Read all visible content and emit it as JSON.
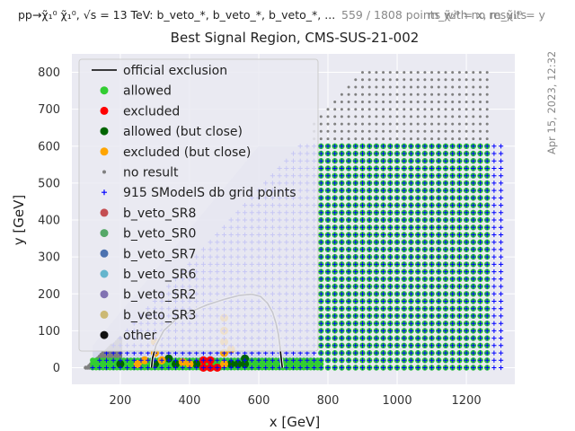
{
  "header": {
    "left": "pp→χ̃₁⁰ χ̃₁⁰, √s = 13 TeV: b_veto_*, b_veto_*, b_veto_*, ...",
    "mid": "559 / 1808 points with no results",
    "right": "m_χ̃₂⁰ = x, m_χ̃₁⁰ = y"
  },
  "timestamp": "Apr 15, 2023, 12:32",
  "colors": {
    "background": "#eaeaf2",
    "allowed": "#32cd32",
    "excluded": "#ff0000",
    "allowed_close": "#006400",
    "excluded_close": "#ffa500",
    "no_result": "#808080",
    "grid_points": "#0000ff",
    "exclusion_line": "#000000",
    "shading": "#cfd3ea"
  },
  "chart_data": {
    "type": "scatter",
    "title": "Best Signal Region, CMS-SUS-21-002",
    "xlabel": "x [GeV]",
    "ylabel": "y [GeV]",
    "xlim": [
      60,
      1340
    ],
    "ylim": [
      -45,
      850
    ],
    "xticks": [
      "200",
      "400",
      "600",
      "800",
      "1000",
      "1200"
    ],
    "yticks": [
      "0",
      "100",
      "200",
      "300",
      "400",
      "500",
      "600",
      "700",
      "800"
    ],
    "grid": true,
    "legend_position": "upper left",
    "legend": [
      {
        "label": "official exclusion",
        "marker": "line",
        "color": "#000000"
      },
      {
        "label": "allowed",
        "marker": "dot",
        "color": "#32cd32"
      },
      {
        "label": "excluded",
        "marker": "dot",
        "color": "#ff0000"
      },
      {
        "label": "allowed (but close)",
        "marker": "dot",
        "color": "#006400"
      },
      {
        "label": "excluded (but close)",
        "marker": "dot",
        "color": "#ffa500"
      },
      {
        "label": "no result",
        "marker": "small",
        "color": "#808080"
      },
      {
        "label": "915 SModelS db grid points",
        "marker": "plus",
        "color": "#0000ff"
      },
      {
        "label": "b_veto_SR8",
        "marker": "dot",
        "color": "#c44e52"
      },
      {
        "label": "b_veto_SR0",
        "marker": "dot",
        "color": "#55a868"
      },
      {
        "label": "b_veto_SR7",
        "marker": "dot",
        "color": "#4c72b0"
      },
      {
        "label": "b_veto_SR6",
        "marker": "dot",
        "color": "#64b5cd"
      },
      {
        "label": "b_veto_SR2",
        "marker": "dot",
        "color": "#8172b2"
      },
      {
        "label": "b_veto_SR3",
        "marker": "dot",
        "color": "#ccb974"
      },
      {
        "label": "other",
        "marker": "dot",
        "color": "#111111"
      }
    ],
    "official_exclusion": [
      [
        290,
        0
      ],
      [
        293,
        25
      ],
      [
        303,
        60
      ],
      [
        325,
        100
      ],
      [
        360,
        130
      ],
      [
        400,
        150
      ],
      [
        450,
        170
      ],
      [
        500,
        185
      ],
      [
        545,
        196
      ],
      [
        580,
        199
      ],
      [
        605,
        193
      ],
      [
        625,
        175
      ],
      [
        640,
        150
      ],
      [
        650,
        120
      ],
      [
        657,
        90
      ],
      [
        661,
        60
      ],
      [
        665,
        25
      ],
      [
        668,
        0
      ]
    ],
    "regions": {
      "grid_points": {
        "x_from": 120,
        "x_to": 1300,
        "step": 20,
        "y_from": 0,
        "y_max_at_x_120": 0,
        "y_max_slope": 1,
        "y_max_cap": 600
      },
      "allowed_block": {
        "x_from": 780,
        "x_to": 1260,
        "y_from": 0,
        "y_to": 600
      },
      "allowed_strip": {
        "x_from": 120,
        "x_to": 780,
        "y_from": 0,
        "y_to": 20
      },
      "no_result_top": {
        "x_from": 760,
        "x_to": 1260,
        "y_from": 620,
        "y_to": 800
      },
      "no_result_corner": {
        "x_from": 100,
        "x_to": 200,
        "y_from": 0,
        "y_to": 80
      }
    },
    "excluded": [
      [
        440,
        0
      ],
      [
        460,
        0
      ],
      [
        480,
        0
      ],
      [
        440,
        20
      ],
      [
        460,
        20
      ]
    ],
    "allowed_close": [
      [
        200,
        10
      ],
      [
        300,
        10
      ],
      [
        360,
        10
      ],
      [
        520,
        10
      ],
      [
        540,
        10
      ],
      [
        560,
        10
      ],
      [
        560,
        25
      ],
      [
        340,
        25
      ],
      [
        420,
        10
      ]
    ],
    "excluded_close": [
      [
        250,
        10
      ],
      [
        270,
        20
      ],
      [
        300,
        40
      ],
      [
        320,
        20
      ],
      [
        380,
        15
      ],
      [
        400,
        10
      ],
      [
        500,
        10
      ],
      [
        500,
        40
      ],
      [
        500,
        70
      ],
      [
        500,
        100
      ],
      [
        500,
        135
      ],
      [
        300,
        70
      ],
      [
        520,
        50
      ]
    ]
  }
}
